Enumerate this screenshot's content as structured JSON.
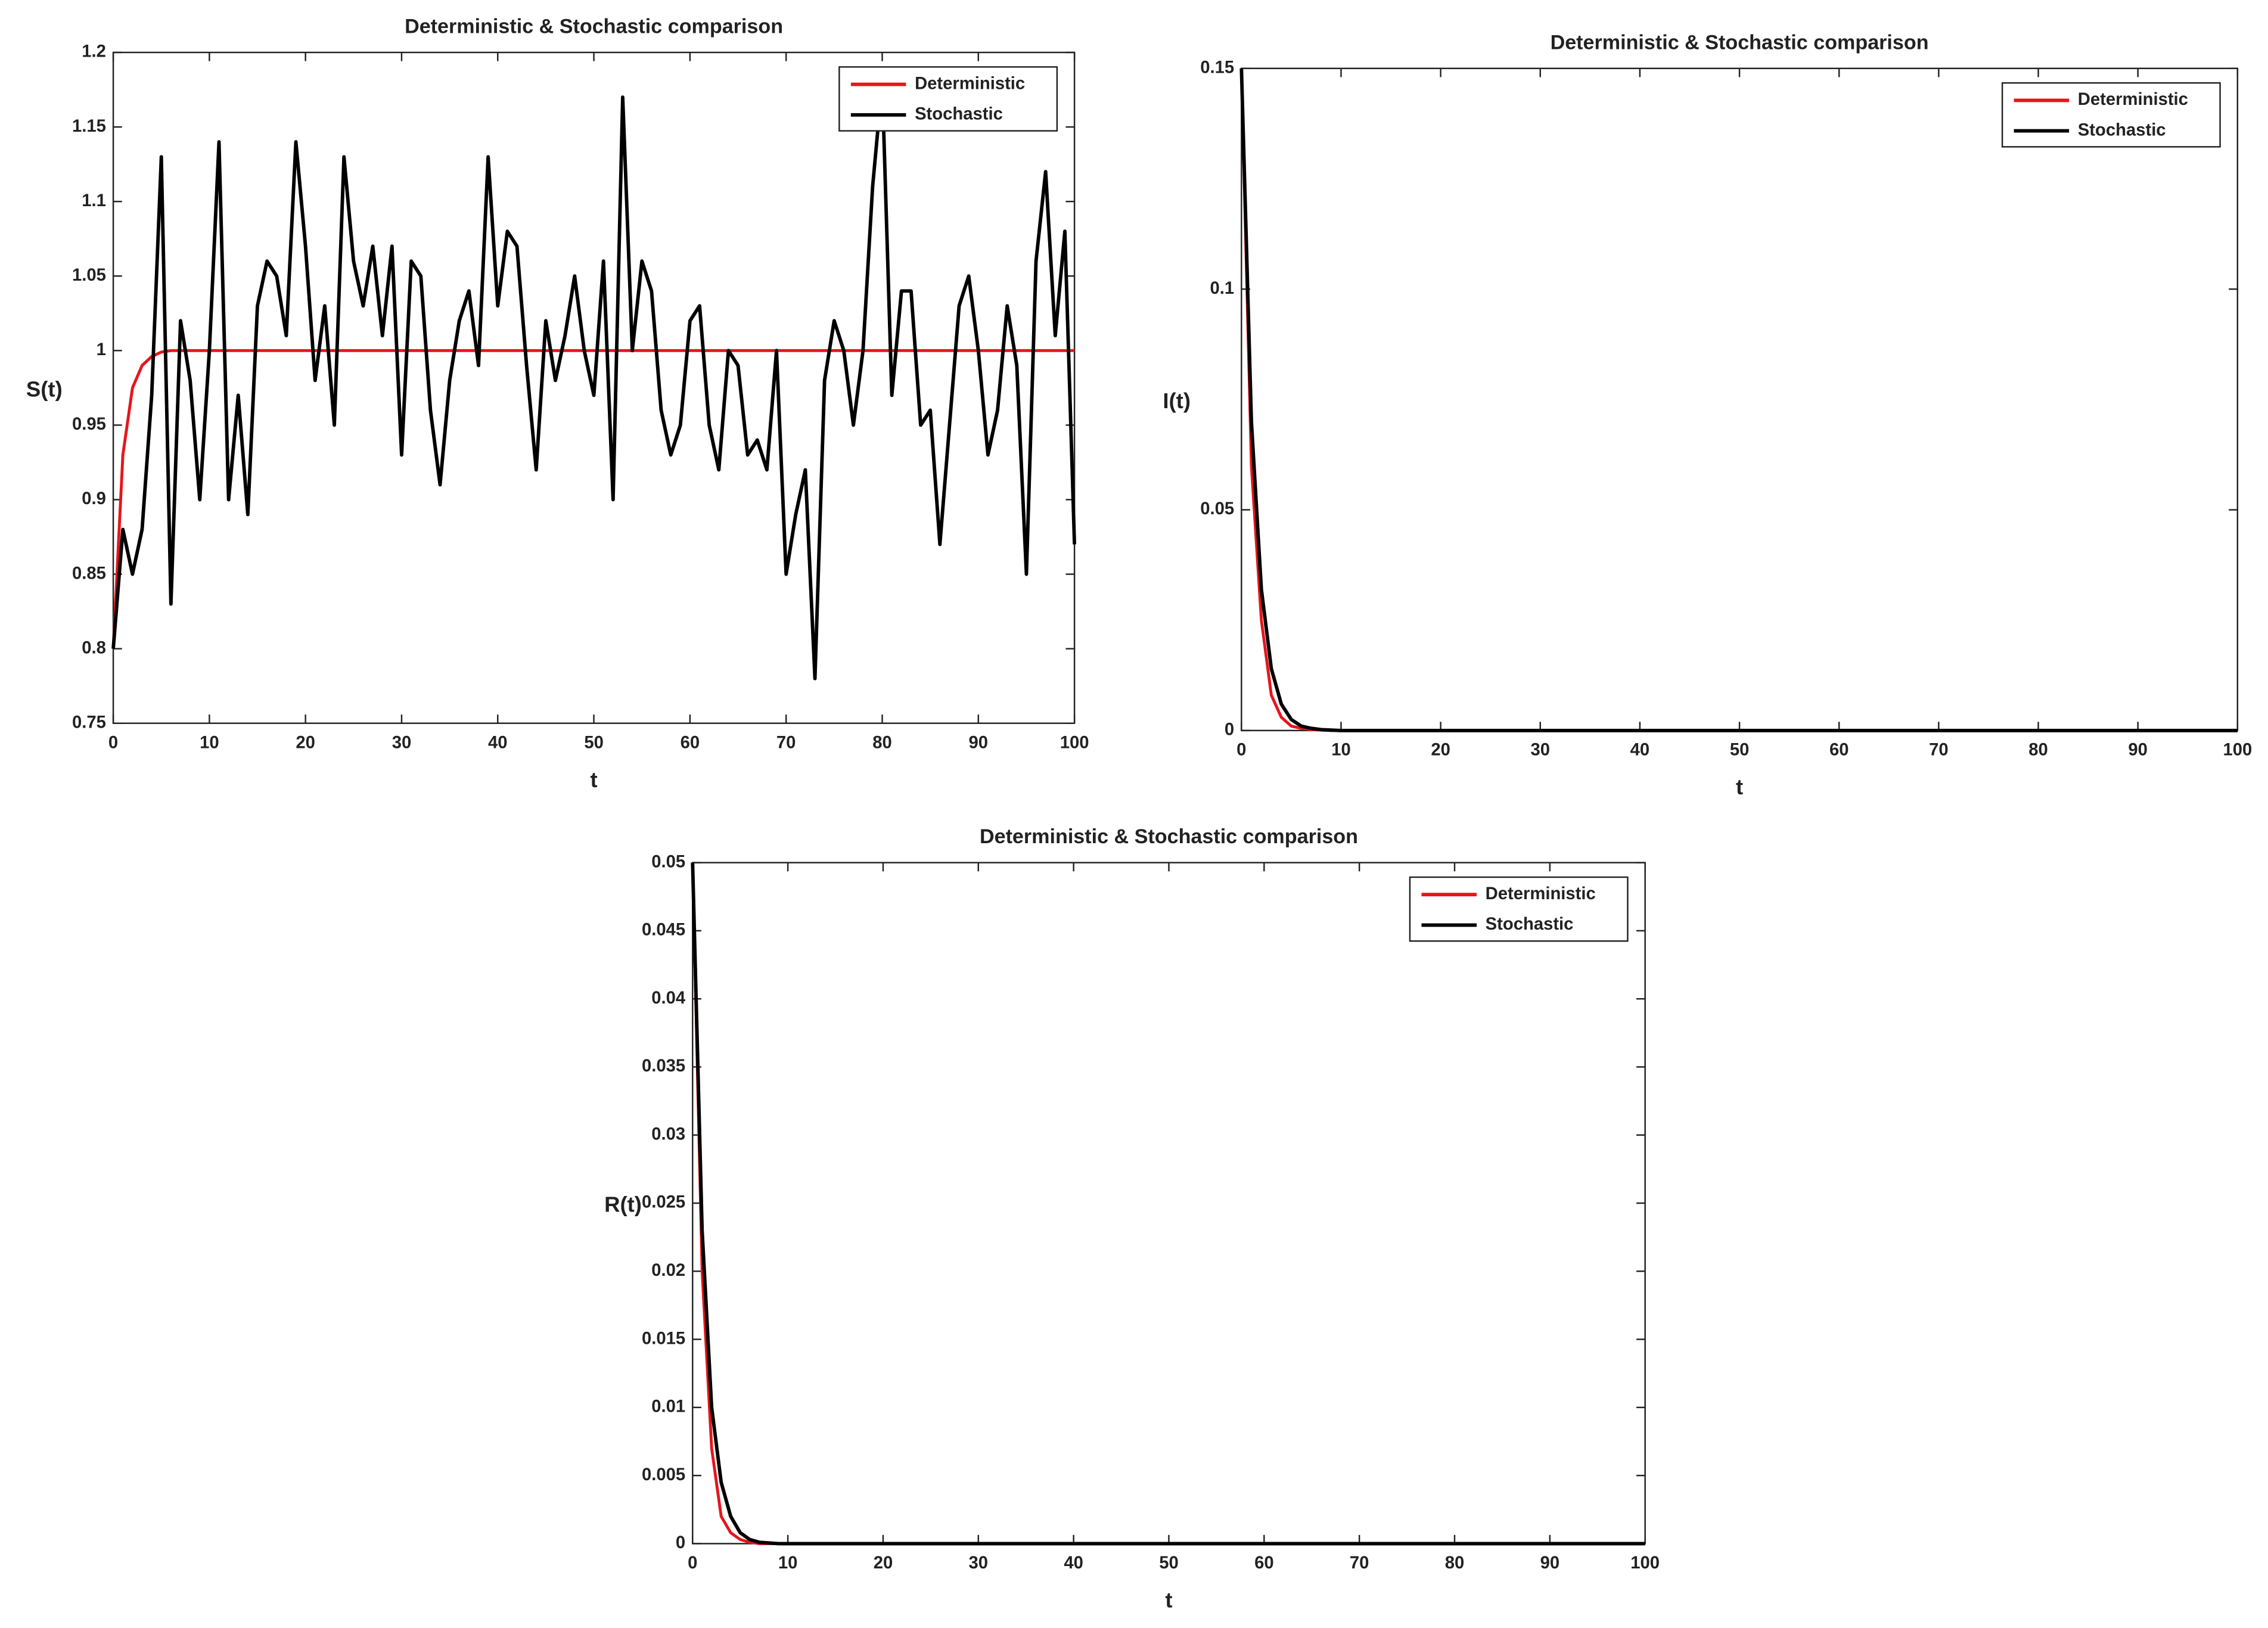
{
  "chart_data": [
    {
      "type": "line",
      "title": "Deterministic & Stochastic comparison",
      "xlabel": "t",
      "ylabel": "S(t)",
      "x": [
        0,
        1,
        2,
        3,
        4,
        5,
        6,
        7,
        8,
        9,
        10,
        11,
        12,
        13,
        14,
        15,
        16,
        17,
        18,
        19,
        20,
        21,
        22,
        23,
        24,
        25,
        26,
        27,
        28,
        29,
        30,
        31,
        32,
        33,
        34,
        35,
        36,
        37,
        38,
        39,
        40,
        41,
        42,
        43,
        44,
        45,
        46,
        47,
        48,
        49,
        50,
        51,
        52,
        53,
        54,
        55,
        56,
        57,
        58,
        59,
        60,
        61,
        62,
        63,
        64,
        65,
        66,
        67,
        68,
        69,
        70,
        71,
        72,
        73,
        74,
        75,
        76,
        77,
        78,
        79,
        80,
        81,
        82,
        83,
        84,
        85,
        86,
        87,
        88,
        89,
        90,
        91,
        92,
        93,
        94,
        95,
        96,
        97,
        98,
        99,
        100
      ],
      "series": [
        {
          "name": "Deterministic",
          "color": "#e8141b",
          "values": [
            0.8,
            0.93,
            0.975,
            0.99,
            0.996,
            0.999,
            1,
            1,
            1,
            1,
            1,
            1,
            1,
            1,
            1,
            1,
            1,
            1,
            1,
            1,
            1,
            1,
            1,
            1,
            1,
            1,
            1,
            1,
            1,
            1,
            1,
            1,
            1,
            1,
            1,
            1,
            1,
            1,
            1,
            1,
            1,
            1,
            1,
            1,
            1,
            1,
            1,
            1,
            1,
            1,
            1,
            1,
            1,
            1,
            1,
            1,
            1,
            1,
            1,
            1,
            1,
            1,
            1,
            1,
            1,
            1,
            1,
            1,
            1,
            1,
            1,
            1,
            1,
            1,
            1,
            1,
            1,
            1,
            1,
            1,
            1,
            1,
            1,
            1,
            1,
            1,
            1,
            1,
            1,
            1,
            1,
            1,
            1,
            1,
            1,
            1,
            1,
            1,
            1,
            1,
            1
          ]
        },
        {
          "name": "Stochastic",
          "color": "#000000",
          "values": [
            0.8,
            0.88,
            0.85,
            0.88,
            0.97,
            1.13,
            0.83,
            1.02,
            0.98,
            0.9,
            1.0,
            1.14,
            0.9,
            0.97,
            0.89,
            1.03,
            1.06,
            1.05,
            1.01,
            1.14,
            1.07,
            0.98,
            1.03,
            0.95,
            1.13,
            1.06,
            1.03,
            1.07,
            1.01,
            1.07,
            0.93,
            1.06,
            1.05,
            0.96,
            0.91,
            0.98,
            1.02,
            1.04,
            0.99,
            1.13,
            1.03,
            1.08,
            1.07,
            0.99,
            0.92,
            1.02,
            0.98,
            1.01,
            1.05,
            1.0,
            0.97,
            1.06,
            0.9,
            1.17,
            1.0,
            1.06,
            1.04,
            0.96,
            0.93,
            0.95,
            1.02,
            1.03,
            0.95,
            0.92,
            1.0,
            0.99,
            0.93,
            0.94,
            0.92,
            1.0,
            0.85,
            0.89,
            0.92,
            0.78,
            0.98,
            1.02,
            1.0,
            0.95,
            1.0,
            1.11,
            1.18,
            0.97,
            1.04,
            1.04,
            0.95,
            0.96,
            0.87,
            0.95,
            1.03,
            1.05,
            1.0,
            0.93,
            0.96,
            1.03,
            0.99,
            0.85,
            1.06,
            1.12,
            1.01,
            1.08,
            0.87
          ]
        }
      ],
      "xlim": [
        0,
        100
      ],
      "xticks": [
        0,
        10,
        20,
        30,
        40,
        50,
        60,
        70,
        80,
        90,
        100
      ],
      "ylim": [
        0.75,
        1.2
      ],
      "yticks": [
        0.75,
        0.8,
        0.85,
        0.9,
        0.95,
        1,
        1.05,
        1.1,
        1.15,
        1.2
      ],
      "legend": "upper right",
      "grid": false
    },
    {
      "type": "line",
      "title": "Deterministic & Stochastic comparison",
      "xlabel": "t",
      "ylabel": "I(t)",
      "x": [
        0,
        1,
        2,
        3,
        4,
        5,
        6,
        7,
        8,
        9,
        10,
        15,
        100
      ],
      "series": [
        {
          "name": "Deterministic",
          "color": "#e8141b",
          "values": [
            0.15,
            0.06,
            0.025,
            0.008,
            0.003,
            0.001,
            0.0005,
            0.0002,
            0.0001,
            0,
            0,
            0,
            0
          ]
        },
        {
          "name": "Stochastic",
          "color": "#000000",
          "values": [
            0.15,
            0.07,
            0.032,
            0.014,
            0.006,
            0.0025,
            0.001,
            0.0005,
            0.0002,
            0.0001,
            0,
            0,
            0
          ]
        }
      ],
      "xlim": [
        0,
        100
      ],
      "xticks": [
        0,
        10,
        20,
        30,
        40,
        50,
        60,
        70,
        80,
        90,
        100
      ],
      "ylim": [
        0,
        0.15
      ],
      "yticks": [
        0,
        0.05,
        0.1,
        0.15
      ],
      "legend": "upper right",
      "grid": false
    },
    {
      "type": "line",
      "title": "Deterministic & Stochastic comparison",
      "xlabel": "t",
      "ylabel": "R(t)",
      "x": [
        0,
        1,
        2,
        3,
        4,
        5,
        6,
        7,
        8,
        9,
        10,
        15,
        100
      ],
      "series": [
        {
          "name": "Deterministic",
          "color": "#e8141b",
          "values": [
            0.05,
            0.02,
            0.007,
            0.002,
            0.0008,
            0.0003,
            0.0001,
            0,
            0,
            0,
            0,
            0,
            0
          ]
        },
        {
          "name": "Stochastic",
          "color": "#000000",
          "values": [
            0.05,
            0.023,
            0.01,
            0.0045,
            0.002,
            0.0008,
            0.0003,
            0.0001,
            5e-05,
            0,
            0,
            0,
            0
          ]
        }
      ],
      "xlim": [
        0,
        100
      ],
      "xticks": [
        0,
        10,
        20,
        30,
        40,
        50,
        60,
        70,
        80,
        90,
        100
      ],
      "ylim": [
        0,
        0.05
      ],
      "yticks": [
        0,
        0.005,
        0.01,
        0.015,
        0.02,
        0.025,
        0.03,
        0.035,
        0.04,
        0.045,
        0.05
      ],
      "legend": "upper right",
      "grid": false
    }
  ]
}
